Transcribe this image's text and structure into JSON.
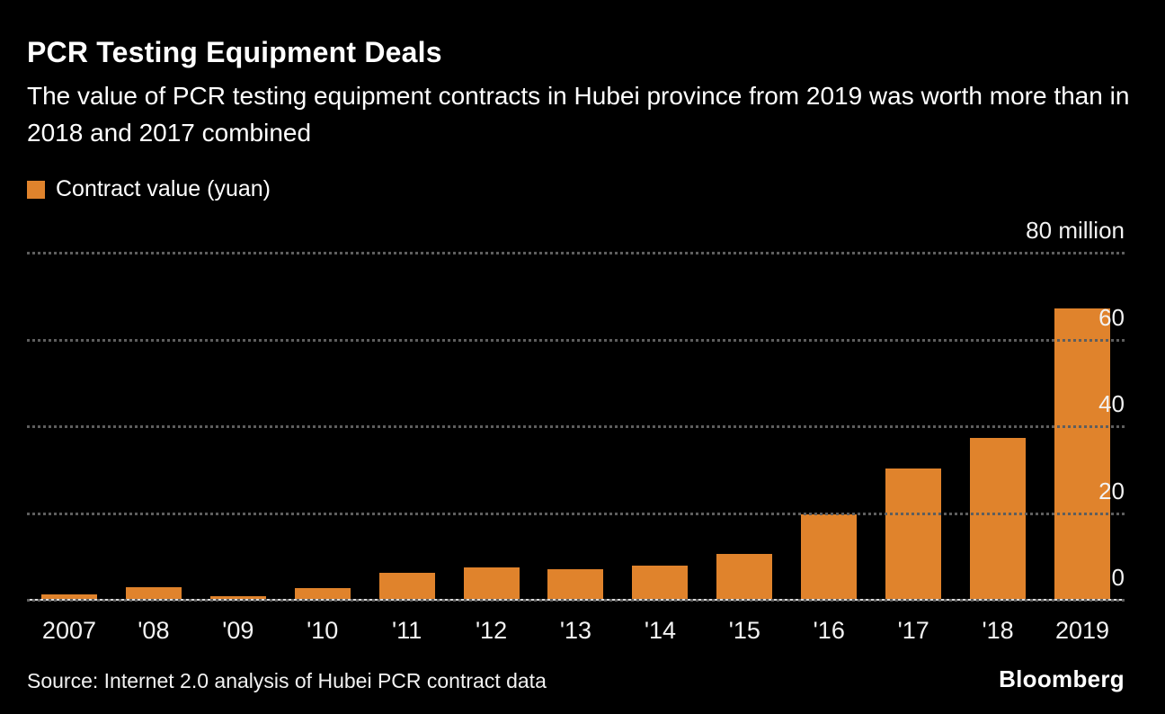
{
  "header": {
    "title": "PCR Testing Equipment Deals",
    "subtitle": "The value of PCR testing equipment contracts in Hubei province from 2019 was worth more than in 2018 and 2017 combined"
  },
  "legend": {
    "label": "Contract value (yuan)",
    "color": "#E0832C"
  },
  "chart_data": {
    "type": "bar",
    "title": "PCR Testing Equipment Deals",
    "categories": [
      "2007",
      "'08",
      "'09",
      "'10",
      "'11",
      "'12",
      "'13",
      "'14",
      "'15",
      "'16",
      "'17",
      "'18",
      "2019"
    ],
    "values": [
      1,
      2.7,
      0.7,
      2.5,
      6,
      7.3,
      6.8,
      7.7,
      10.4,
      19.5,
      30,
      37,
      67
    ],
    "unit": "million yuan",
    "xlabel": "",
    "ylabel": "Contract value (yuan)",
    "ylim": [
      0,
      80
    ],
    "grid": "horizontal-dotted",
    "legend_position": "top-left",
    "bar_color": "#E0832C",
    "y_ticks": [
      {
        "value": 80,
        "label": "80 million"
      },
      {
        "value": 60,
        "label": "60"
      },
      {
        "value": 40,
        "label": "40"
      },
      {
        "value": 20,
        "label": "20"
      },
      {
        "value": 0,
        "label": "0"
      }
    ]
  },
  "footer": {
    "source": "Source: Internet 2.0 analysis of Hubei PCR contract data",
    "logo": "Bloomberg"
  }
}
